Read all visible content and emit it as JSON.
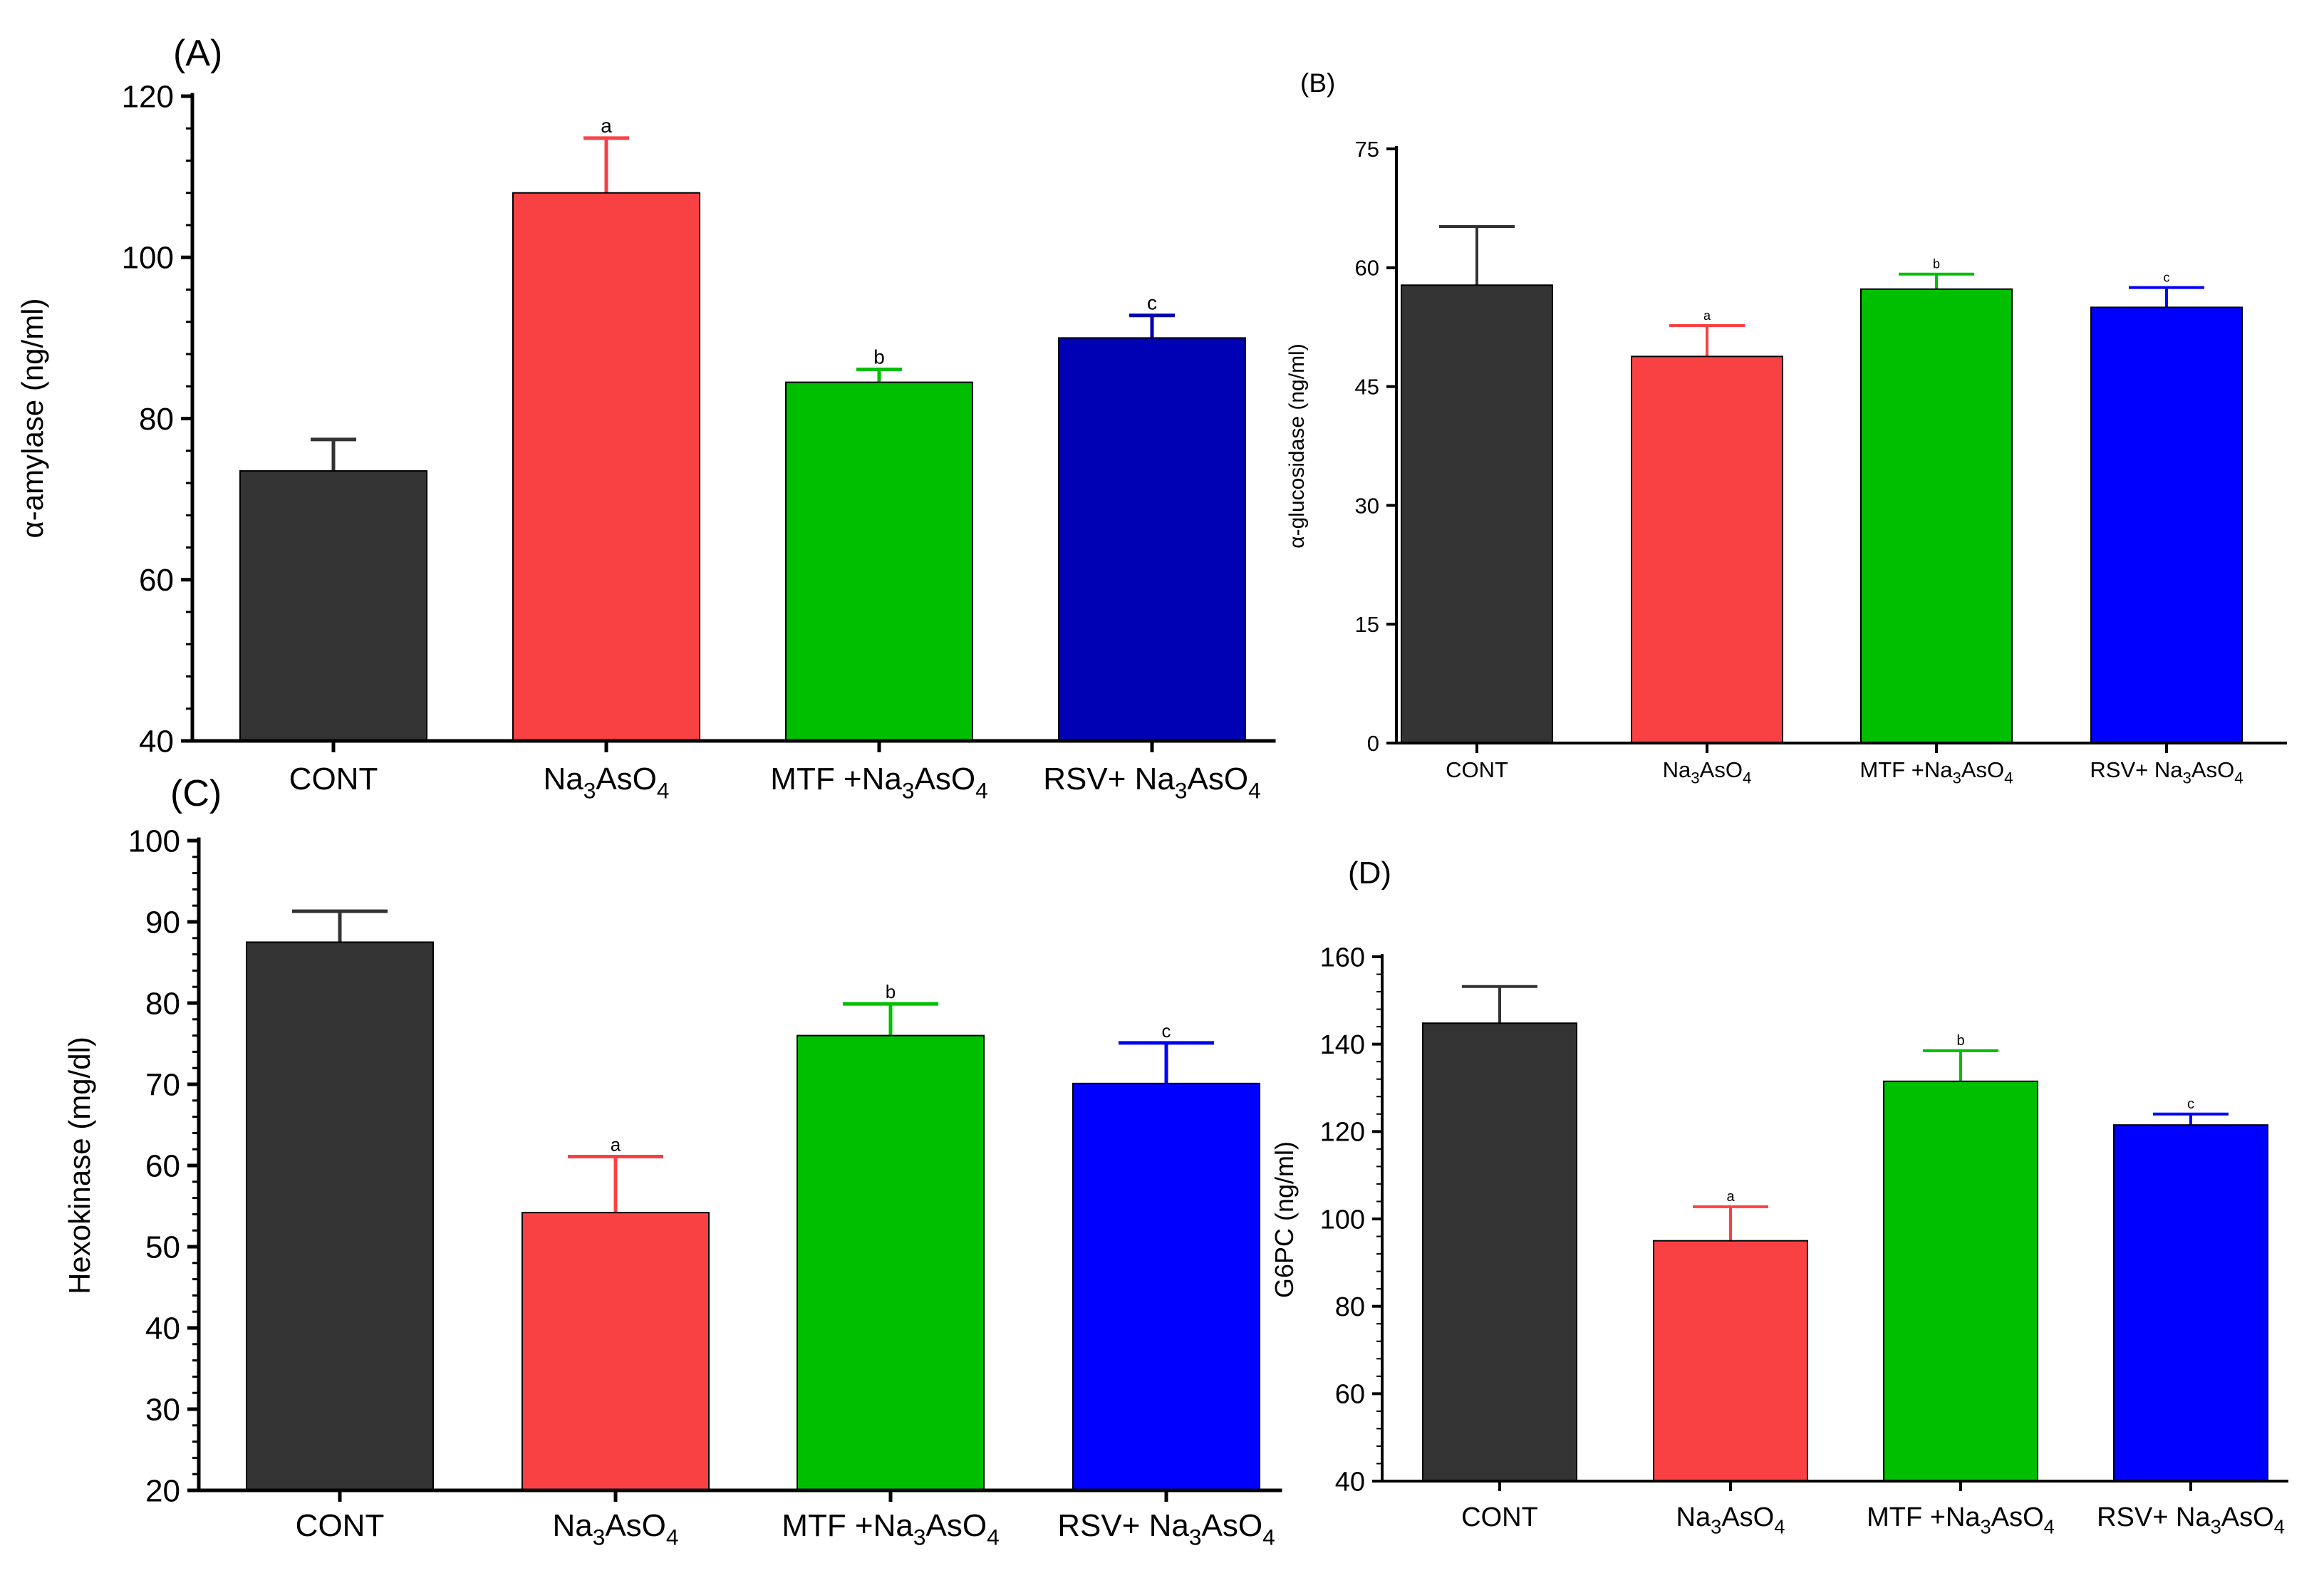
{
  "colors": {
    "cont": "#333333",
    "arsenate": "#f94144",
    "mtf": "#00bf00",
    "rsv_dark": "#0000b4",
    "rsv": "#0000ff",
    "axis": "#000000"
  },
  "chart_data": [
    {
      "id": "A",
      "type": "bar",
      "panel_label": "(A)",
      "ylabel": "α-amylase (ng/ml)",
      "xlabel": "",
      "ylim": [
        40,
        120
      ],
      "yticks": [
        40,
        60,
        80,
        100,
        120
      ],
      "minor_per_major": 5,
      "categories": [
        {
          "main": "CONT",
          "parts": [
            {
              "t": "CONT"
            }
          ]
        },
        {
          "main": "Na3AsO4",
          "parts": [
            {
              "t": "Na"
            },
            {
              "t": "3",
              "sub": true
            },
            {
              "t": "AsO"
            },
            {
              "t": "4",
              "sub": true
            }
          ]
        },
        {
          "main": "MTF +Na3AsO4",
          "parts": [
            {
              "t": "MTF +Na"
            },
            {
              "t": "3",
              "sub": true
            },
            {
              "t": "AsO"
            },
            {
              "t": "4",
              "sub": true
            }
          ]
        },
        {
          "main": "RSV+ Na3AsO4",
          "parts": [
            {
              "t": "RSV+ Na"
            },
            {
              "t": "3",
              "sub": true
            },
            {
              "t": "AsO"
            },
            {
              "t": "4",
              "sub": true
            }
          ]
        }
      ],
      "values": [
        73.5,
        108,
        84.5,
        90
      ],
      "errors": [
        3.9,
        6.8,
        1.6,
        2.8
      ],
      "letters": [
        "",
        "a",
        "b",
        "c"
      ],
      "bar_colors": [
        "#333333",
        "#f94144",
        "#00bf00",
        "#0000b4"
      ]
    },
    {
      "id": "B",
      "type": "bar",
      "panel_label": "(B)",
      "ylabel": "α-glucosidase (ng/ml)",
      "xlabel": "",
      "ylim": [
        0,
        75
      ],
      "yticks": [
        0,
        15,
        30,
        45,
        60,
        75
      ],
      "minor_per_major": 0,
      "categories": [
        {
          "main": "CONT",
          "parts": [
            {
              "t": "CONT"
            }
          ]
        },
        {
          "main": "Na3AsO4",
          "parts": [
            {
              "t": "Na"
            },
            {
              "t": "3",
              "sub": true
            },
            {
              "t": "AsO"
            },
            {
              "t": "4",
              "sub": true
            }
          ]
        },
        {
          "main": "MTF +Na3AsO4",
          "parts": [
            {
              "t": "MTF +Na"
            },
            {
              "t": "3",
              "sub": true
            },
            {
              "t": "AsO"
            },
            {
              "t": "4",
              "sub": true
            }
          ]
        },
        {
          "main": "RSV+ Na3AsO4",
          "parts": [
            {
              "t": "RSV+ Na"
            },
            {
              "t": "3",
              "sub": true
            },
            {
              "t": "AsO"
            },
            {
              "t": "4",
              "sub": true
            }
          ]
        }
      ],
      "values": [
        57.8,
        48.8,
        57.3,
        55
      ],
      "errors": [
        7.4,
        3.9,
        1.9,
        2.5
      ],
      "letters": [
        "",
        "a",
        "b",
        "c"
      ],
      "bar_colors": [
        "#333333",
        "#f94144",
        "#00bf00",
        "#0000ff"
      ]
    },
    {
      "id": "C",
      "type": "bar",
      "panel_label": "(C)",
      "ylabel": "Hexokinase (mg/dl)",
      "xlabel": "",
      "ylim": [
        20,
        100
      ],
      "yticks": [
        20,
        30,
        40,
        50,
        60,
        70,
        80,
        90,
        100
      ],
      "minor_per_major": 5,
      "categories": [
        {
          "main": "CONT",
          "parts": [
            {
              "t": "CONT"
            }
          ]
        },
        {
          "main": "Na3AsO4",
          "parts": [
            {
              "t": "Na"
            },
            {
              "t": "3",
              "sub": true
            },
            {
              "t": "AsO"
            },
            {
              "t": "4",
              "sub": true
            }
          ]
        },
        {
          "main": "MTF +Na3AsO4",
          "parts": [
            {
              "t": "MTF +Na"
            },
            {
              "t": "3",
              "sub": true
            },
            {
              "t": "AsO"
            },
            {
              "t": "4",
              "sub": true
            }
          ]
        },
        {
          "main": "RSV+ Na3AsO4",
          "parts": [
            {
              "t": "RSV+ Na"
            },
            {
              "t": "3",
              "sub": true
            },
            {
              "t": "AsO"
            },
            {
              "t": "4",
              "sub": true
            }
          ]
        }
      ],
      "values": [
        87.5,
        54.2,
        76,
        70.1
      ],
      "errors": [
        3.8,
        6.9,
        3.9,
        5
      ],
      "letters": [
        "",
        "a",
        "b",
        "c"
      ],
      "bar_colors": [
        "#333333",
        "#f94144",
        "#00bf00",
        "#0000ff"
      ]
    },
    {
      "id": "D",
      "type": "bar",
      "panel_label": "(D)",
      "ylabel": "G6PC (ng/ml)",
      "xlabel": "",
      "ylim": [
        40,
        160
      ],
      "yticks": [
        40,
        60,
        80,
        100,
        120,
        140,
        160
      ],
      "minor_per_major": 5,
      "categories": [
        {
          "main": "CONT",
          "parts": [
            {
              "t": "CONT"
            }
          ]
        },
        {
          "main": "Na3AsO4",
          "parts": [
            {
              "t": "Na"
            },
            {
              "t": "3",
              "sub": true
            },
            {
              "t": "AsO"
            },
            {
              "t": "4",
              "sub": true
            }
          ]
        },
        {
          "main": "MTF +Na3AsO4",
          "parts": [
            {
              "t": "MTF +Na"
            },
            {
              "t": "3",
              "sub": true
            },
            {
              "t": "AsO"
            },
            {
              "t": "4",
              "sub": true
            }
          ]
        },
        {
          "main": "RSV+ Na3AsO4",
          "parts": [
            {
              "t": "RSV+ Na"
            },
            {
              "t": "3",
              "sub": true
            },
            {
              "t": "AsO"
            },
            {
              "t": "4",
              "sub": true
            }
          ]
        }
      ],
      "values": [
        144.8,
        95,
        131.5,
        121.5
      ],
      "errors": [
        8.4,
        7.8,
        7,
        2.5
      ],
      "letters": [
        "",
        "a",
        "b",
        "c"
      ],
      "bar_colors": [
        "#333333",
        "#f94144",
        "#00bf00",
        "#0000ff"
      ]
    }
  ]
}
